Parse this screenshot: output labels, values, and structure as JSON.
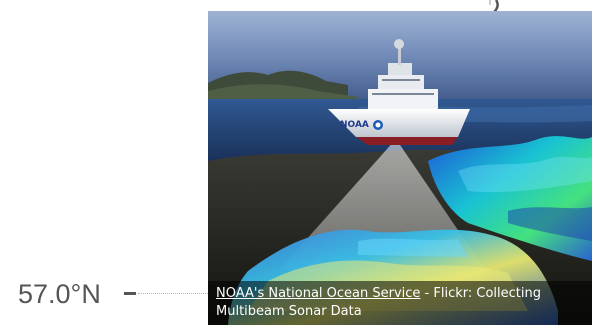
{
  "map": {
    "latitude_label": "57.0°N"
  },
  "popup": {
    "image_alt": "Collecting Multibeam Sonar Data",
    "caption": {
      "link_text": "NOAA's National Ocean Service",
      "rest_text": " - Flickr: Collecting Multibeam Sonar Data"
    },
    "ship_label": "NOAA"
  },
  "colors": {
    "sky_top": "#6a86b8",
    "sea": "#27477f",
    "seafloor_high": "#e8e86a",
    "seafloor_low": "#2a64d8",
    "caption_background": "#000000",
    "label_text": "#555555"
  }
}
